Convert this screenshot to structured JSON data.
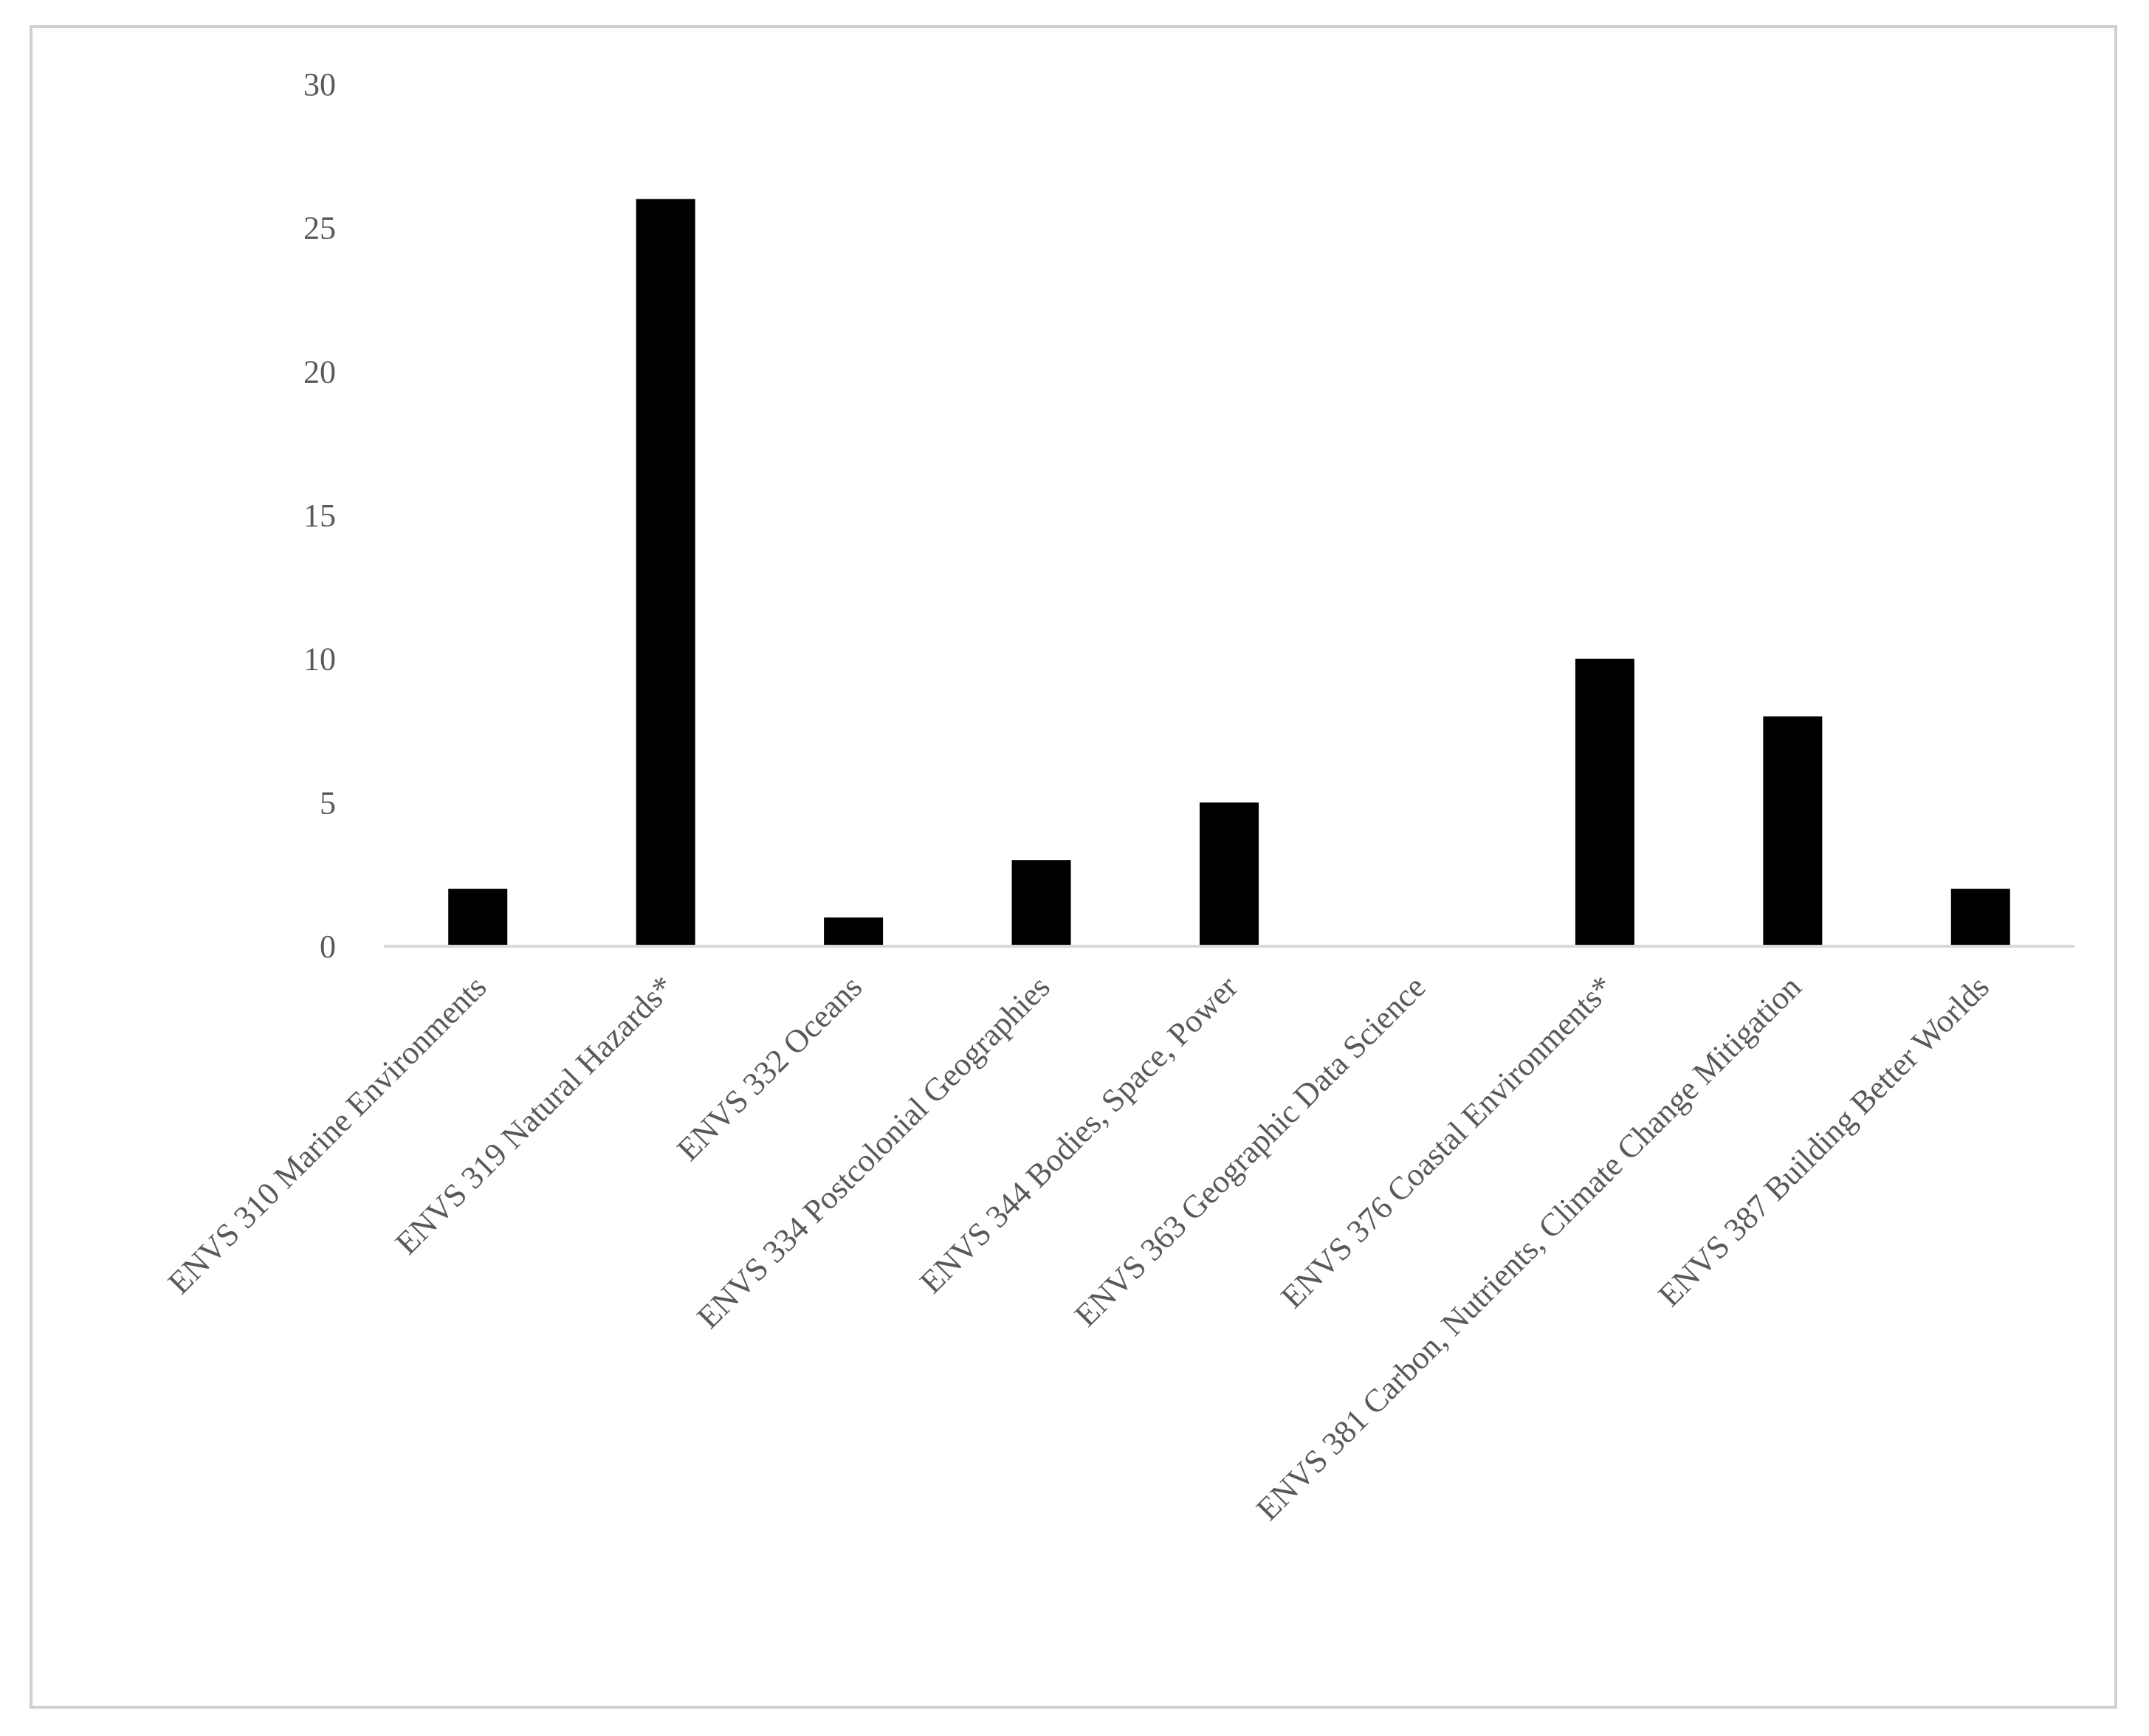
{
  "chart_data": {
    "type": "bar",
    "categories": [
      "ENVS 310 Marine Environments",
      "ENVS 319 Natural Hazards*",
      "ENVS 332 Oceans",
      "ENVS 334 Postcolonial Geographies",
      "ENVS 344 Bodies, Space, Power",
      "ENVS 363 Geographic Data Science",
      "ENVS 376 Coastal Environments*",
      "ENVS 381 Carbon, Nutrients, Climate Change Mitigation",
      "ENVS 387 Building Better Worlds"
    ],
    "values": [
      2,
      26,
      1,
      3,
      5,
      0,
      10,
      8,
      2
    ],
    "yticks": [
      "0",
      "5",
      "10",
      "15",
      "20",
      "25",
      "30"
    ],
    "ylim": [
      0,
      30
    ],
    "bar_color": "#000000",
    "axis_color": "#d9d9d9",
    "text_color": "#595959",
    "frame_color": "#d0d0d0",
    "grid": false,
    "legend": false
  }
}
